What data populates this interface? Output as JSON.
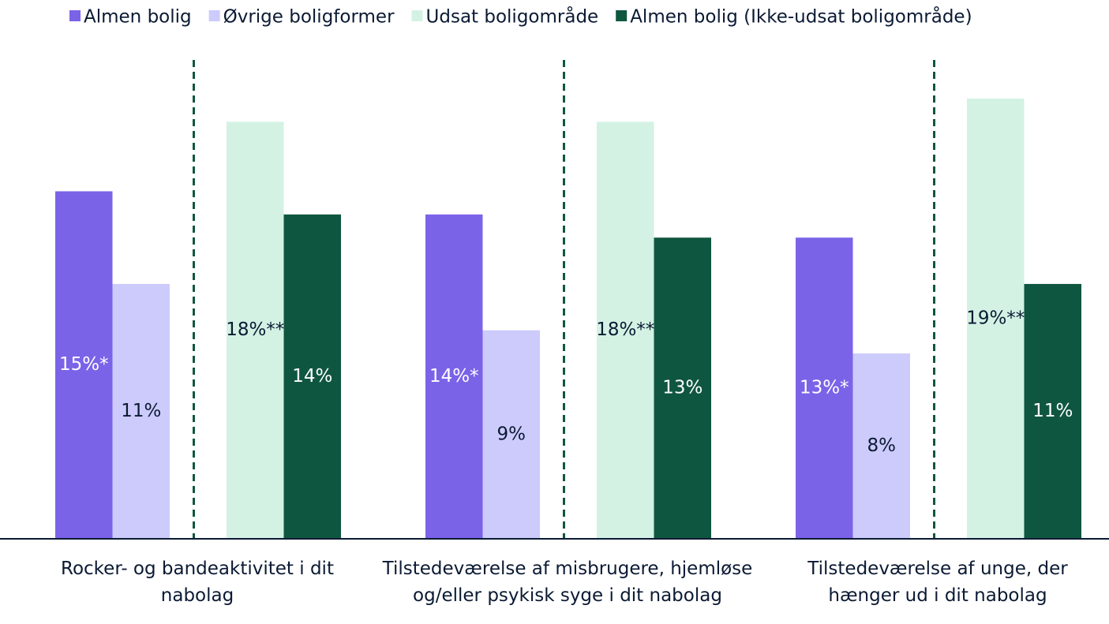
{
  "chart_data": {
    "type": "bar",
    "categories": [
      "Rocker- og bandeaktivitet i dit nabolag",
      "Tilstedeværelse af misbrugere, hjemløse og/eller psykisk syge i dit nabolag",
      "Tilstedeværelse af unge, der hænger ud i dit nabolag"
    ],
    "series": [
      {
        "name": "Almen bolig",
        "color": "#7b63e8",
        "values": [
          15,
          14,
          13
        ],
        "value_labels": [
          "15%*",
          "14%*",
          "13%*"
        ]
      },
      {
        "name": "Øvrige boligformer",
        "color": "#cccbfc",
        "values": [
          11,
          9,
          8
        ],
        "value_labels": [
          "11%",
          "9%",
          "8%"
        ]
      },
      {
        "name": "Udsat boligområde",
        "color": "#d3f2e4",
        "values": [
          18,
          18,
          19
        ],
        "value_labels": [
          "18%**",
          "18%**",
          "19%**"
        ]
      },
      {
        "name": "Almen bolig (Ikke-udsat boligområde)",
        "color": "#0f5640",
        "values": [
          14,
          13,
          11
        ],
        "value_labels": [
          "14%",
          "13%",
          "11%"
        ]
      }
    ]
  }
}
